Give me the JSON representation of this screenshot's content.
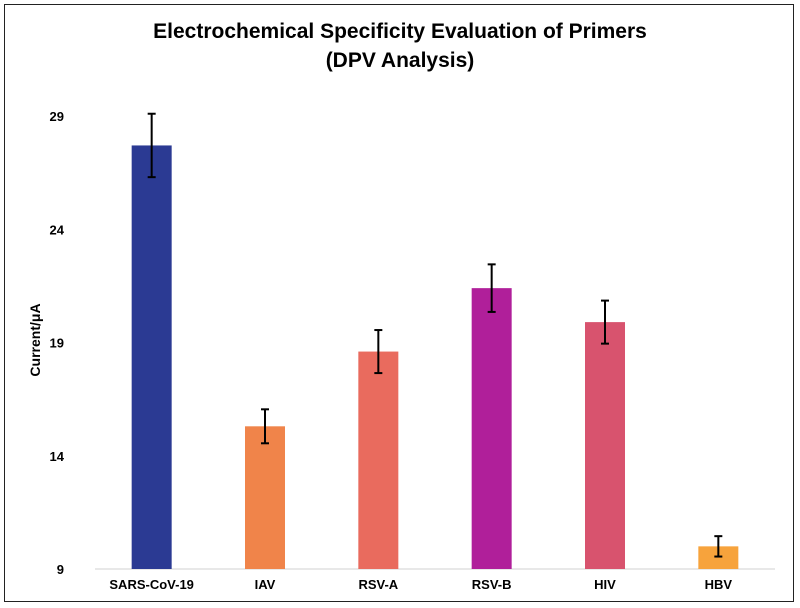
{
  "chart_data": {
    "type": "bar",
    "title": "Electrochemical Specificity Evaluation of Primers",
    "subtitle": "(DPV Analysis)",
    "xlabel": "",
    "ylabel": "Current/μA",
    "ylim": [
      9,
      29
    ],
    "yticks": [
      9,
      14,
      19,
      24,
      29
    ],
    "grid": false,
    "categories": [
      "SARS-CoV-19",
      "IAV",
      "RSV-A",
      "RSV-B",
      "HIV",
      "HBV"
    ],
    "values": [
      27.7,
      15.3,
      18.6,
      21.4,
      19.9,
      10.0
    ],
    "errors": [
      1.4,
      0.75,
      0.95,
      1.05,
      0.95,
      0.45
    ],
    "colors": [
      "#2b3a93",
      "#f0844a",
      "#e96b5e",
      "#b01f9a",
      "#d8536e",
      "#f7a33c"
    ]
  }
}
